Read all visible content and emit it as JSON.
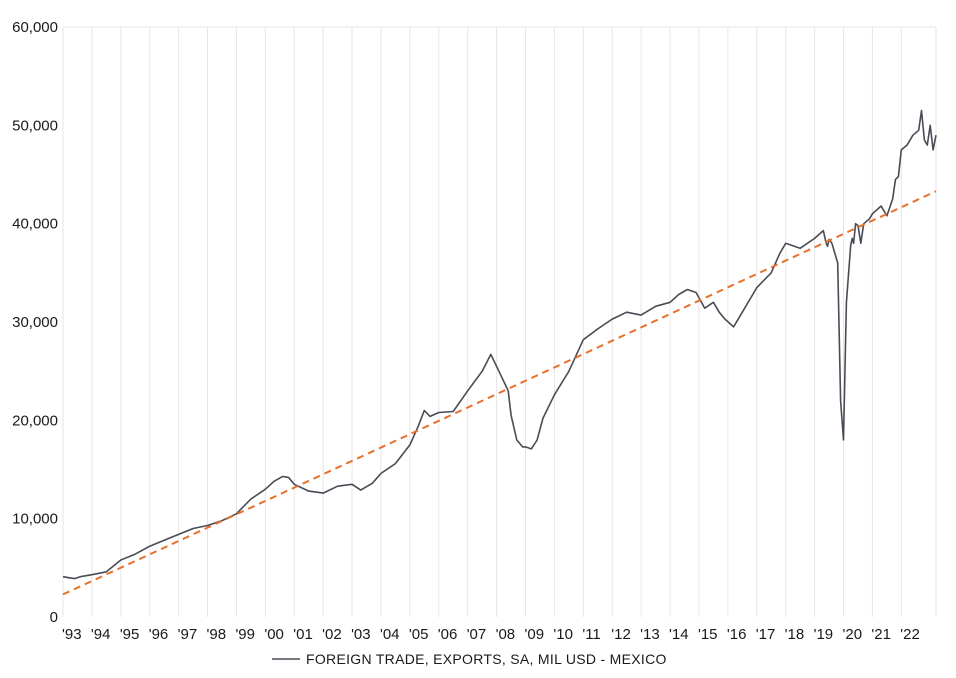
{
  "chart_data": {
    "type": "line",
    "title": "",
    "xlabel": "",
    "ylabel": "",
    "ylim": [
      0,
      60000
    ],
    "yticks": [
      0,
      10000,
      20000,
      30000,
      40000,
      50000,
      60000
    ],
    "ytick_labels": [
      "0",
      "10,000",
      "20,000",
      "30,000",
      "40,000",
      "50,000",
      "60,000"
    ],
    "xlim": [
      1993.0,
      2023.2
    ],
    "xticks": [
      1993,
      1994,
      1995,
      1996,
      1997,
      1998,
      1999,
      2000,
      2001,
      2002,
      2003,
      2004,
      2005,
      2006,
      2007,
      2008,
      2009,
      2010,
      2011,
      2012,
      2013,
      2014,
      2015,
      2016,
      2017,
      2018,
      2019,
      2020,
      2021,
      2022
    ],
    "xtick_labels": [
      "'93",
      "'94",
      "'95",
      "'96",
      "'97",
      "'98",
      "'99",
      "'00",
      "'01",
      "'02",
      "'03",
      "'04",
      "'05",
      "'06",
      "'07",
      "'08",
      "'09",
      "'10",
      "'11",
      "'12",
      "'13",
      "'14",
      "'15",
      "'16",
      "'17",
      "'18",
      "'19",
      "'20",
      "'21",
      "'22"
    ],
    "grid": "vertical",
    "legend_position": "bottom-center",
    "colors": {
      "series": "#4a4b55",
      "trend": "#e8702a",
      "grid": "#e6e6e6"
    },
    "series": [
      {
        "name": "FOREIGN TRADE, EXPORTS, SA, MIL USD - MEXICO",
        "style": "solid",
        "x": [
          1993.0,
          1993.2,
          1993.4,
          1993.6,
          1994.0,
          1994.5,
          1995.0,
          1995.5,
          1996.0,
          1996.5,
          1997.0,
          1997.5,
          1998.0,
          1998.5,
          1999.0,
          1999.5,
          2000.0,
          2000.3,
          2000.6,
          2000.8,
          2001.0,
          2001.5,
          2002.0,
          2002.5,
          2003.0,
          2003.3,
          2003.7,
          2004.0,
          2004.5,
          2005.0,
          2005.3,
          2005.5,
          2005.7,
          2006.0,
          2006.5,
          2007.0,
          2007.5,
          2007.8,
          2008.0,
          2008.4,
          2008.5,
          2008.7,
          2008.9,
          2009.0,
          2009.2,
          2009.4,
          2009.6,
          2010.0,
          2010.5,
          2011.0,
          2011.5,
          2012.0,
          2012.5,
          2013.0,
          2013.5,
          2014.0,
          2014.3,
          2014.6,
          2014.9,
          2015.2,
          2015.5,
          2015.7,
          2015.9,
          2016.2,
          2016.5,
          2017.0,
          2017.5,
          2017.8,
          2018.0,
          2018.5,
          2019.0,
          2019.3,
          2019.4,
          2019.45,
          2019.5,
          2019.6,
          2019.8,
          2019.9,
          2020.0,
          2020.1,
          2020.25,
          2020.3,
          2020.35,
          2020.42,
          2020.5,
          2020.6,
          2020.7,
          2020.9,
          2021.0,
          2021.3,
          2021.5,
          2021.7,
          2021.8,
          2021.9,
          2022.0,
          2022.2,
          2022.4,
          2022.6,
          2022.7,
          2022.8,
          2022.9,
          2023.0,
          2023.1,
          2023.2
        ],
        "y": [
          4100,
          4000,
          3900,
          4100,
          4300,
          4600,
          5800,
          6400,
          7200,
          7800,
          8400,
          9000,
          9300,
          9800,
          10500,
          12000,
          13000,
          13800,
          14300,
          14200,
          13500,
          12800,
          12600,
          13300,
          13500,
          12900,
          13600,
          14600,
          15600,
          17500,
          19500,
          21000,
          20400,
          20800,
          20900,
          23000,
          25000,
          26700,
          25500,
          23000,
          20500,
          18000,
          17300,
          17300,
          17100,
          18000,
          20200,
          22600,
          25000,
          28200,
          29300,
          30300,
          31000,
          30700,
          31600,
          32000,
          32800,
          33300,
          33000,
          31400,
          32000,
          31000,
          30300,
          29500,
          31000,
          33500,
          35000,
          37000,
          38000,
          37500,
          38500,
          39300,
          38000,
          37700,
          38400,
          38000,
          36000,
          22000,
          18000,
          32000,
          37800,
          38500,
          38000,
          40000,
          39800,
          38000,
          40000,
          40500,
          41000,
          41800,
          40800,
          42500,
          44500,
          44800,
          47500,
          48000,
          49000,
          49500,
          51500,
          48500,
          48000,
          50000,
          47500,
          49000
        ]
      },
      {
        "name": "",
        "style": "dashed",
        "x": [
          1993.0,
          2023.2
        ],
        "y": [
          2300,
          43300
        ]
      }
    ]
  }
}
